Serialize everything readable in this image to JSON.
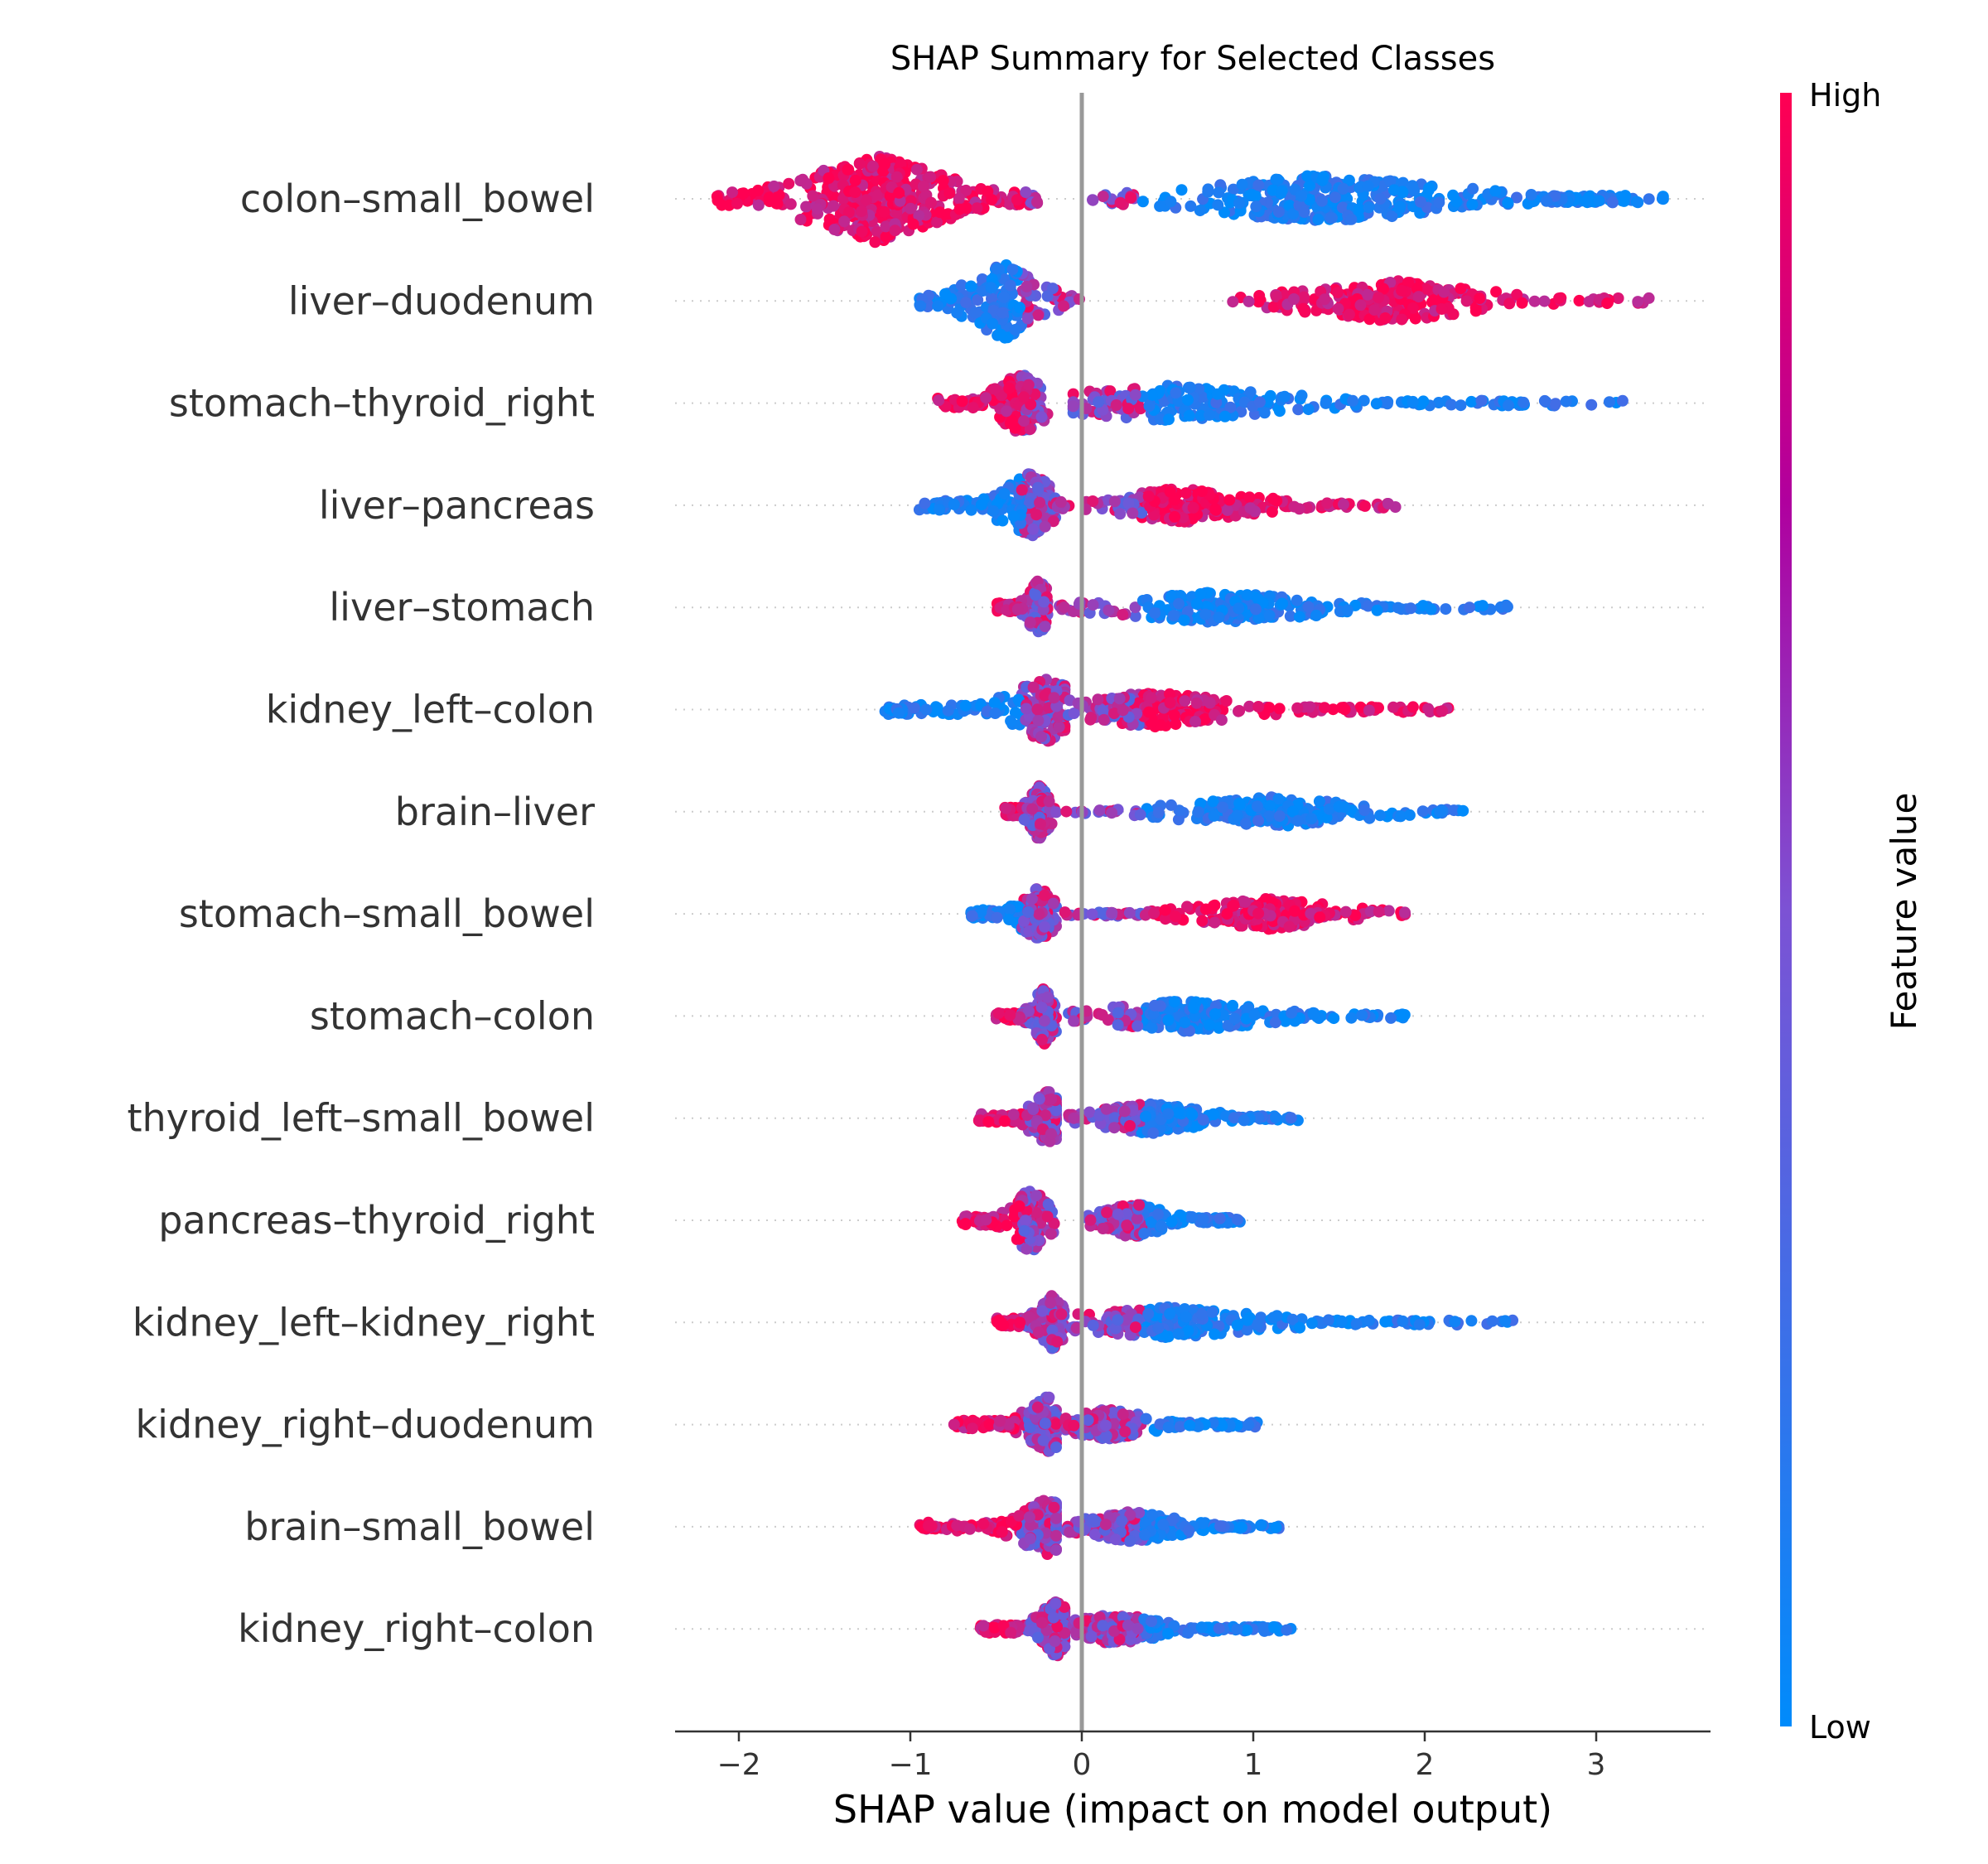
{
  "chart_data": {
    "type": "scatter",
    "subtype": "shap-beeswarm",
    "title": "SHAP Summary for Selected Classes",
    "xlabel": "SHAP value (impact on model output)",
    "ylabel": "",
    "xlim": [
      -2.4,
      3.65
    ],
    "xticks": [
      -2,
      -1,
      0,
      1,
      2,
      3
    ],
    "xtick_labels": [
      "−2",
      "−1",
      "0",
      "1",
      "2",
      "3"
    ],
    "grid": false,
    "colorbar": {
      "title": "Feature value",
      "high_label": "High",
      "low_label": "Low",
      "high_color": "#ff0052",
      "mid_color": "#b0009e",
      "low_color": "#008bfb"
    },
    "features": [
      {
        "name": "colon–small_bowel",
        "neg_range": [
          -2.15,
          -0.25
        ],
        "neg_peak": -1.2,
        "pos_range": [
          0.05,
          3.4
        ],
        "pos_peak": 1.4,
        "pos_peak2": 2.9,
        "neg_color": "high",
        "pos_color": "low",
        "spread": 0.9
      },
      {
        "name": "liver–duodenum",
        "neg_range": [
          -0.95,
          0.0
        ],
        "neg_peak": -0.45,
        "pos_range": [
          0.88,
          3.33
        ],
        "pos_peak": 1.8,
        "neg_color": "low",
        "pos_color": "high",
        "spread": 0.75
      },
      {
        "name": "stomach–thyroid_right",
        "neg_range": [
          -0.85,
          -0.2
        ],
        "neg_peak": -0.35,
        "pos_range": [
          -0.05,
          3.2
        ],
        "pos_peak": 0.5,
        "neg_color": "high",
        "pos_color": "low",
        "spread": 0.6
      },
      {
        "name": "liver–pancreas",
        "neg_range": [
          -0.95,
          -0.15
        ],
        "neg_peak": -0.3,
        "pos_range": [
          -0.15,
          1.85
        ],
        "pos_peak": 0.6,
        "neg_color": "low",
        "pos_color": "high",
        "spread": 0.6
      },
      {
        "name": "liver–stomach",
        "neg_range": [
          -0.5,
          -0.2
        ],
        "neg_peak": -0.25,
        "pos_range": [
          -0.15,
          2.5
        ],
        "pos_peak": 0.8,
        "neg_color": "high",
        "pos_color": "low",
        "spread": 0.5
      },
      {
        "name": "kidney_left–colon",
        "neg_range": [
          -1.15,
          -0.1
        ],
        "neg_peak": -0.2,
        "pos_range": [
          -0.1,
          2.15
        ],
        "pos_peak": 0.4,
        "neg_color": "low",
        "pos_color": "high",
        "spread": 0.6
      },
      {
        "name": "brain–liver",
        "neg_range": [
          -0.45,
          -0.15
        ],
        "neg_peak": -0.25,
        "pos_range": [
          -0.15,
          2.25
        ],
        "pos_peak": 1.1,
        "neg_color": "high",
        "pos_color": "low",
        "spread": 0.5
      },
      {
        "name": "stomach–small_bowel",
        "neg_range": [
          -0.65,
          -0.15
        ],
        "neg_peak": -0.25,
        "pos_range": [
          -0.1,
          1.93
        ],
        "pos_peak": 1.1,
        "neg_color": "low",
        "pos_color": "high",
        "spread": 0.5
      },
      {
        "name": "stomach–colon",
        "neg_range": [
          -0.5,
          -0.15
        ],
        "neg_peak": -0.22,
        "pos_range": [
          -0.1,
          2.02
        ],
        "pos_peak": 0.6,
        "neg_color": "high",
        "pos_color": "low",
        "spread": 0.5
      },
      {
        "name": "thyroid_left–small_bowel",
        "neg_range": [
          -0.6,
          -0.15
        ],
        "neg_peak": -0.2,
        "pos_range": [
          -0.1,
          1.32
        ],
        "pos_peak": 0.4,
        "neg_color": "high",
        "pos_color": "low",
        "spread": 0.5
      },
      {
        "name": "pancreas–thyroid_right",
        "neg_range": [
          -0.7,
          -0.15
        ],
        "neg_peak": -0.3,
        "pos_range": [
          0.0,
          0.93
        ],
        "pos_peak": 0.3,
        "neg_color": "high",
        "pos_color": "low",
        "spread": 0.6
      },
      {
        "name": "kidney_left–kidney_right",
        "neg_range": [
          -0.5,
          -0.1
        ],
        "neg_peak": -0.18,
        "pos_range": [
          -0.1,
          2.55
        ],
        "pos_peak": 0.5,
        "neg_color": "high",
        "pos_color": "low",
        "spread": 0.5
      },
      {
        "name": "kidney_right–duodenum",
        "neg_range": [
          -0.75,
          -0.15
        ],
        "neg_peak": -0.2,
        "pos_range": [
          -0.1,
          1.05
        ],
        "pos_peak": 0.15,
        "neg_color": "high",
        "pos_color": "low",
        "spread": 0.5
      },
      {
        "name": "brain–small_bowel",
        "neg_range": [
          -0.95,
          -0.15
        ],
        "neg_peak": -0.2,
        "pos_range": [
          -0.1,
          1.17
        ],
        "pos_peak": 0.3,
        "neg_color": "high",
        "pos_color": "low",
        "spread": 0.5
      },
      {
        "name": "kidney_right–colon",
        "neg_range": [
          -0.6,
          -0.1
        ],
        "neg_peak": -0.15,
        "pos_range": [
          -0.05,
          1.22
        ],
        "pos_peak": 0.2,
        "neg_color": "high",
        "pos_color": "low",
        "spread": 0.5
      }
    ]
  }
}
